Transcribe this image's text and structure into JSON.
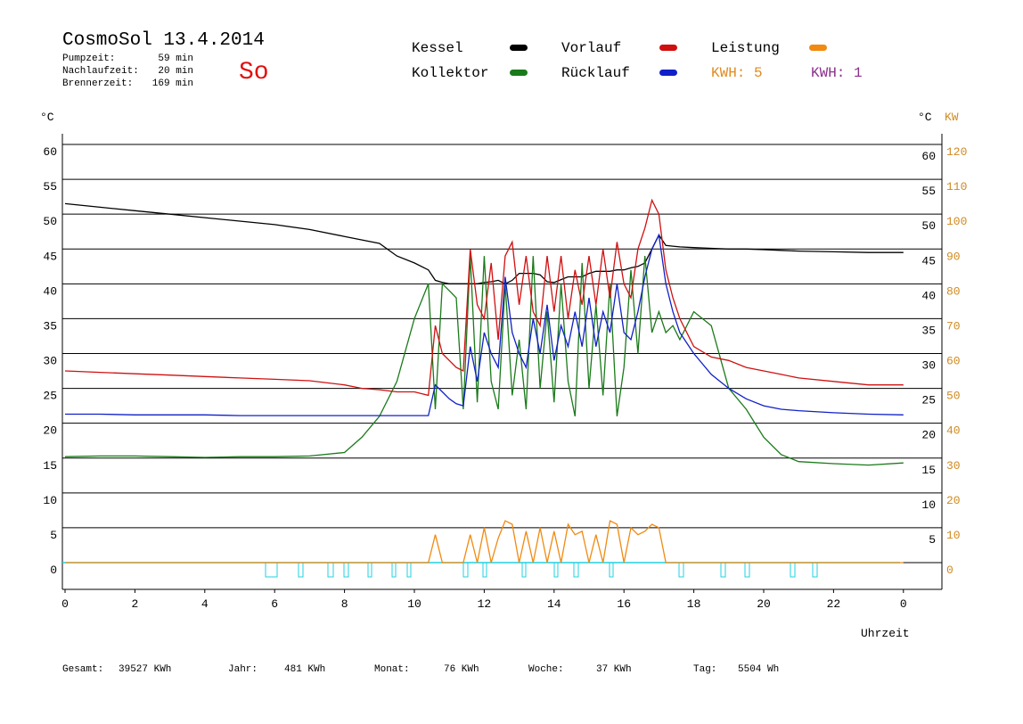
{
  "header": {
    "title": "CosmoSol 13.4.2014",
    "weekday": "So",
    "info": [
      {
        "label": "Pumpzeit:",
        "value": "59 min"
      },
      {
        "label": "Nachlaufzeit:",
        "value": "20 min"
      },
      {
        "label": "Brennerzeit:",
        "value": "169 min"
      }
    ],
    "kwh": [
      {
        "text": "KWH: 5",
        "color": "#e08a1e"
      },
      {
        "text": "KWH: 1",
        "color": "#8b2e8b"
      }
    ]
  },
  "footer": [
    {
      "label": "Gesamt:",
      "value": "39527 KWh"
    },
    {
      "label": "Jahr:",
      "value": "481 KWh"
    },
    {
      "label": "Monat:",
      "value": "76 KWh"
    },
    {
      "label": "Woche:",
      "value": "37 KWh"
    },
    {
      "label": "Tag:",
      "value": "5504 Wh"
    }
  ],
  "chart_data": {
    "type": "line",
    "y_unit": "°C",
    "y_right_unit": "°C",
    "y2_unit": "KW",
    "xlabel": "Uhrzeit",
    "xlim": [
      0,
      24
    ],
    "xticks": [
      0,
      2,
      4,
      6,
      8,
      10,
      12,
      14,
      16,
      18,
      20,
      22,
      {
        "value": 24,
        "label": "0"
      }
    ],
    "ylim": [
      0,
      60
    ],
    "yticks": [
      0,
      5,
      10,
      15,
      20,
      25,
      30,
      35,
      40,
      45,
      50,
      55,
      60
    ],
    "y_right_ticks": [
      5,
      10,
      15,
      20,
      25,
      30,
      35,
      40,
      45,
      50,
      55,
      60
    ],
    "y2lim": [
      0,
      120
    ],
    "y2ticks": [
      0,
      10,
      20,
      30,
      40,
      50,
      60,
      70,
      80,
      90,
      100,
      110,
      120
    ],
    "grid": true,
    "x": [
      0,
      1,
      2,
      3,
      4,
      5,
      6,
      7,
      8,
      8.5,
      9,
      9.5,
      10,
      10.4,
      10.6,
      10.8,
      11.0,
      11.2,
      11.4,
      11.6,
      11.8,
      12.0,
      12.2,
      12.4,
      12.6,
      12.8,
      13.0,
      13.2,
      13.4,
      13.6,
      13.8,
      14.0,
      14.2,
      14.4,
      14.6,
      14.8,
      15.0,
      15.2,
      15.4,
      15.6,
      15.8,
      16.0,
      16.2,
      16.4,
      16.6,
      16.8,
      17.0,
      17.2,
      17.4,
      17.6,
      18,
      18.5,
      19,
      19.5,
      20,
      20.5,
      21,
      22,
      23,
      24
    ],
    "series": [
      {
        "name": "Kessel",
        "color": "#000000",
        "values": [
          51.5,
          51,
          50.5,
          50,
          49.5,
          49,
          48.5,
          47.8,
          46.8,
          46.3,
          45.8,
          44,
          43,
          42,
          40.5,
          40.2,
          40,
          40,
          40,
          40,
          40,
          40.2,
          40.3,
          40.5,
          40,
          40.5,
          41.5,
          41.5,
          41.5,
          41.3,
          40.3,
          40.2,
          40.6,
          41,
          41,
          41,
          41.5,
          41.8,
          41.8,
          41.8,
          42,
          42,
          42.3,
          42.5,
          43,
          45,
          47,
          45.5,
          45.4,
          45.3,
          45.2,
          45.1,
          45,
          45,
          44.9,
          44.8,
          44.7,
          44.6,
          44.5,
          44.5
        ]
      },
      {
        "name": "Kollektor",
        "color": "#1a7a1a",
        "values": [
          15.2,
          15.3,
          15.3,
          15.2,
          15.1,
          15.2,
          15.2,
          15.3,
          15.8,
          18,
          21,
          26,
          35,
          40,
          22,
          40,
          39,
          38,
          22,
          44,
          23,
          44,
          26,
          22,
          40,
          24,
          32,
          22,
          44,
          25,
          36,
          23,
          40,
          26,
          21,
          43,
          25,
          37,
          24,
          40,
          21,
          28,
          42,
          30,
          44,
          33,
          36,
          33,
          34,
          32,
          36,
          34,
          25,
          22,
          18,
          15.5,
          14.5,
          14.2,
          14,
          14.3
        ]
      },
      {
        "name": "Vorlauf",
        "color": "#d01010",
        "values": [
          27.5,
          27.3,
          27.1,
          26.9,
          26.7,
          26.5,
          26.3,
          26.1,
          25.5,
          25,
          24.8,
          24.5,
          24.5,
          24,
          34,
          30,
          29,
          28,
          27.5,
          45,
          37,
          35,
          43,
          32,
          44,
          46,
          37,
          44,
          36,
          34,
          44,
          36,
          44,
          35,
          42,
          37,
          44,
          37,
          45,
          38,
          46,
          40,
          38,
          45,
          48,
          52,
          50,
          42,
          38,
          35,
          31,
          29.5,
          29,
          28,
          27.5,
          27,
          26.5,
          26,
          25.5,
          25.5
        ]
      },
      {
        "name": "Rücklauf",
        "color": "#1020c8",
        "values": [
          21.3,
          21.3,
          21.2,
          21.2,
          21.2,
          21.1,
          21.1,
          21.1,
          21.1,
          21.1,
          21.1,
          21.1,
          21.1,
          21.1,
          25.5,
          24.5,
          23.5,
          22.8,
          22.5,
          31,
          26,
          33,
          30,
          28,
          41,
          33,
          30,
          28,
          35,
          30,
          37,
          29,
          34,
          31,
          36,
          31,
          38,
          31,
          36,
          33,
          40,
          33,
          32,
          36,
          41,
          45,
          47,
          40,
          36,
          33,
          30,
          27,
          25,
          23.5,
          22.5,
          22,
          21.8,
          21.5,
          21.3,
          21.2
        ]
      },
      {
        "name": "Leistung",
        "color": "#f08a10",
        "axis": "y2",
        "values": [
          0,
          0,
          0,
          0,
          0,
          0,
          0,
          0,
          0,
          0,
          0,
          0,
          0,
          0,
          8,
          0,
          0,
          0,
          0,
          8,
          0,
          10,
          0,
          7,
          12,
          11,
          0,
          9,
          0,
          10,
          0,
          9,
          0,
          11,
          8,
          9,
          0,
          8,
          0,
          12,
          11,
          0,
          10,
          8,
          9,
          11,
          10,
          0,
          0,
          0,
          0,
          0,
          0,
          0,
          0,
          0,
          0,
          0,
          0,
          0
        ]
      }
    ]
  }
}
